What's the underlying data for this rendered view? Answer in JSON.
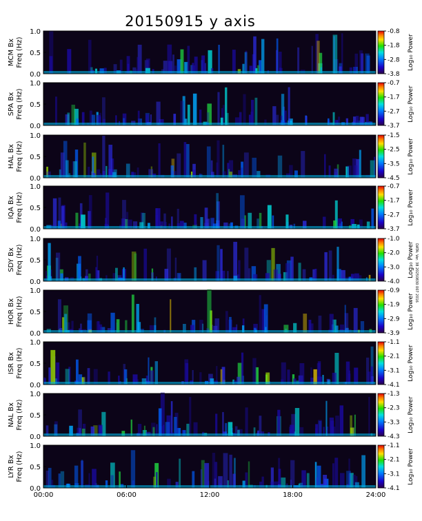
{
  "chart_data": {
    "type": "heatmap",
    "title": "20150915 y axis",
    "xlabel": "",
    "x_ticks": [
      "00:00",
      "06:00",
      "12:00",
      "18:00",
      "24:00"
    ],
    "xlim": [
      0,
      24
    ],
    "y_ticks": [
      "0.0",
      "0.5",
      "1.0"
    ],
    "ylim": [
      0,
      1.0
    ],
    "colorbar_label": "Log₁₀ Power",
    "footnote": "DATA: Ver. 38 20250830 007 2016",
    "panels": [
      {
        "station": "MCM",
        "ylabel": "Freq (Hz)",
        "name_label": "MCM Bx",
        "cbar_ticks": [
          "-0.8",
          "-1.8",
          "-2.8",
          "-3.8"
        ],
        "clim": [
          -3.8,
          -0.8
        ]
      },
      {
        "station": "SPA",
        "ylabel": "Freq (Hz)",
        "name_label": "SPA Bx",
        "cbar_ticks": [
          "-0.7",
          "-1.7",
          "-2.7",
          "-3.7"
        ],
        "clim": [
          -3.7,
          -0.7
        ]
      },
      {
        "station": "HAL",
        "ylabel": "Freq (Hz)",
        "name_label": "HAL Bx",
        "cbar_ticks": [
          "-1.5",
          "-2.5",
          "-3.5",
          "-4.5"
        ],
        "clim": [
          -4.5,
          -1.5
        ]
      },
      {
        "station": "IQA",
        "ylabel": "Freq (Hz)",
        "name_label": "IQA Bx",
        "cbar_ticks": [
          "-0.7",
          "-1.7",
          "-2.7",
          "-3.7"
        ],
        "clim": [
          -3.7,
          -0.7
        ]
      },
      {
        "station": "SDY",
        "ylabel": "Freq (Hz)",
        "name_label": "SDY Bx",
        "cbar_ticks": [
          "-1.0",
          "-2.0",
          "-3.0",
          "-4.0"
        ],
        "clim": [
          -4.0,
          -1.0
        ]
      },
      {
        "station": "HOR",
        "ylabel": "Freq (Hz)",
        "name_label": "HOR Bx",
        "cbar_ticks": [
          "-0.9",
          "-1.9",
          "-2.9",
          "-3.9"
        ],
        "clim": [
          -3.9,
          -0.9
        ]
      },
      {
        "station": "ISR",
        "ylabel": "Freq (Hz)",
        "name_label": "ISR Bx",
        "cbar_ticks": [
          "-1.1",
          "-2.1",
          "-3.1",
          "-4.1"
        ],
        "clim": [
          -4.1,
          -1.1
        ]
      },
      {
        "station": "NAL",
        "ylabel": "Freq (Hz)",
        "name_label": "NAL Bx",
        "cbar_ticks": [
          "-1.3",
          "-2.3",
          "-3.3",
          "-4.3"
        ],
        "clim": [
          -4.3,
          -1.3
        ]
      },
      {
        "station": "LYR",
        "ylabel": "Freq (Hz)",
        "name_label": "LYR Bx",
        "cbar_ticks": [
          "-1.1",
          "-2.1",
          "-3.1",
          "-4.1"
        ],
        "clim": [
          -4.1,
          -1.1
        ]
      }
    ]
  }
}
